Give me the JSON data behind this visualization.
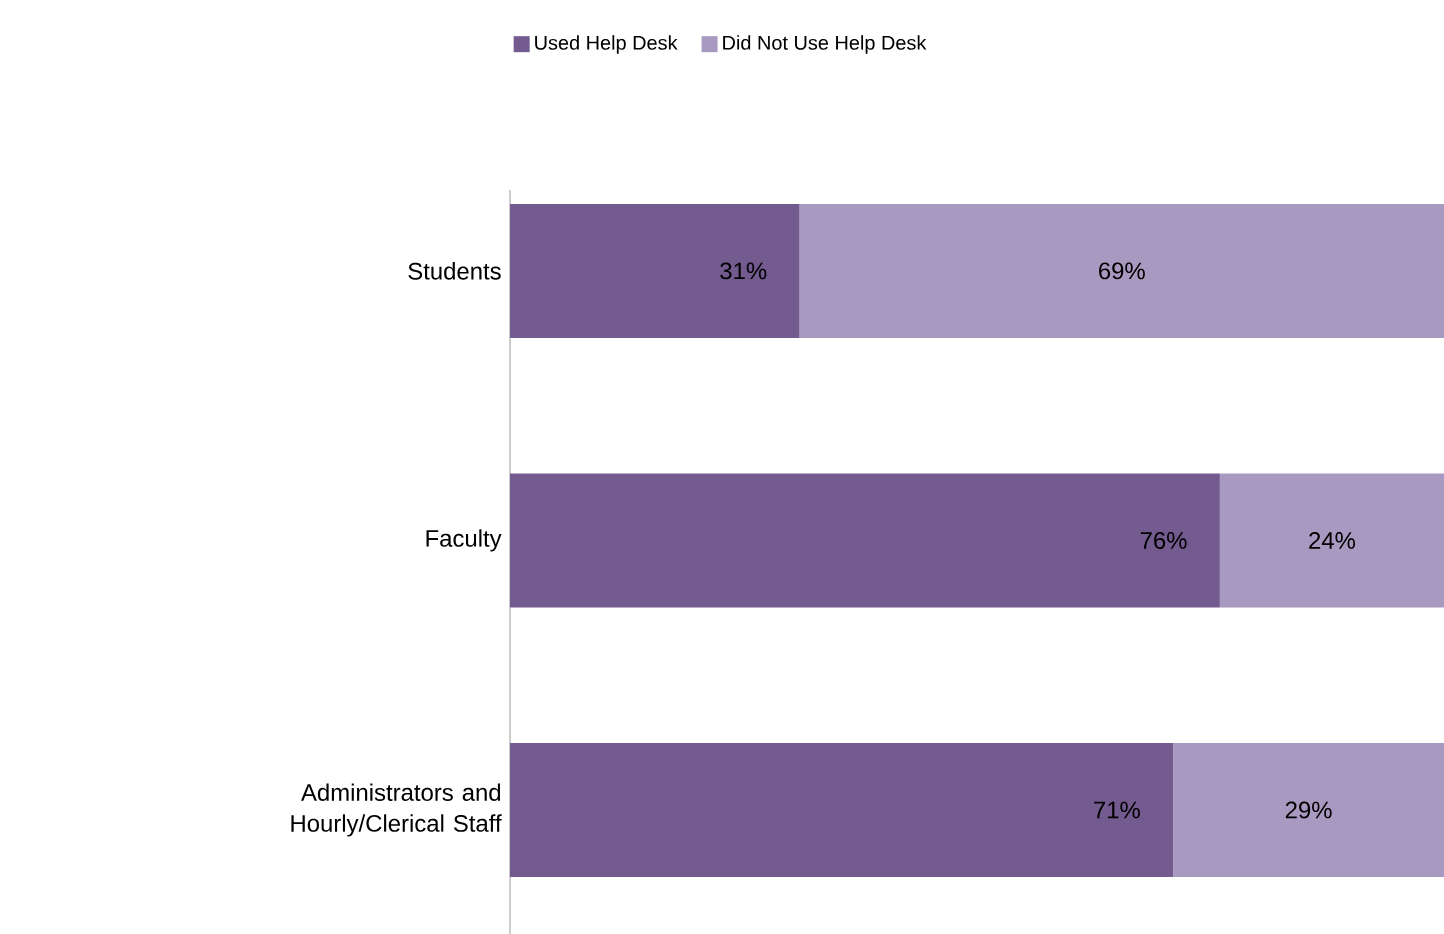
{
  "chart_data": {
    "type": "bar",
    "orientation": "horizontal",
    "stacked": true,
    "legend": "top",
    "categories": [
      "Students",
      "Faculty",
      "Administrators and Hourly/Clerical Staff"
    ],
    "series": [
      {
        "name": "Used Help Desk",
        "color": "#735a8f",
        "values": [
          31,
          76,
          71
        ],
        "value_labels": [
          "31%",
          "76%",
          "71%"
        ]
      },
      {
        "name": "Did Not Use Help Desk",
        "color": "#a899c1",
        "values": [
          69,
          24,
          29
        ],
        "value_labels": [
          "69%",
          "24%",
          "29%"
        ]
      }
    ]
  }
}
